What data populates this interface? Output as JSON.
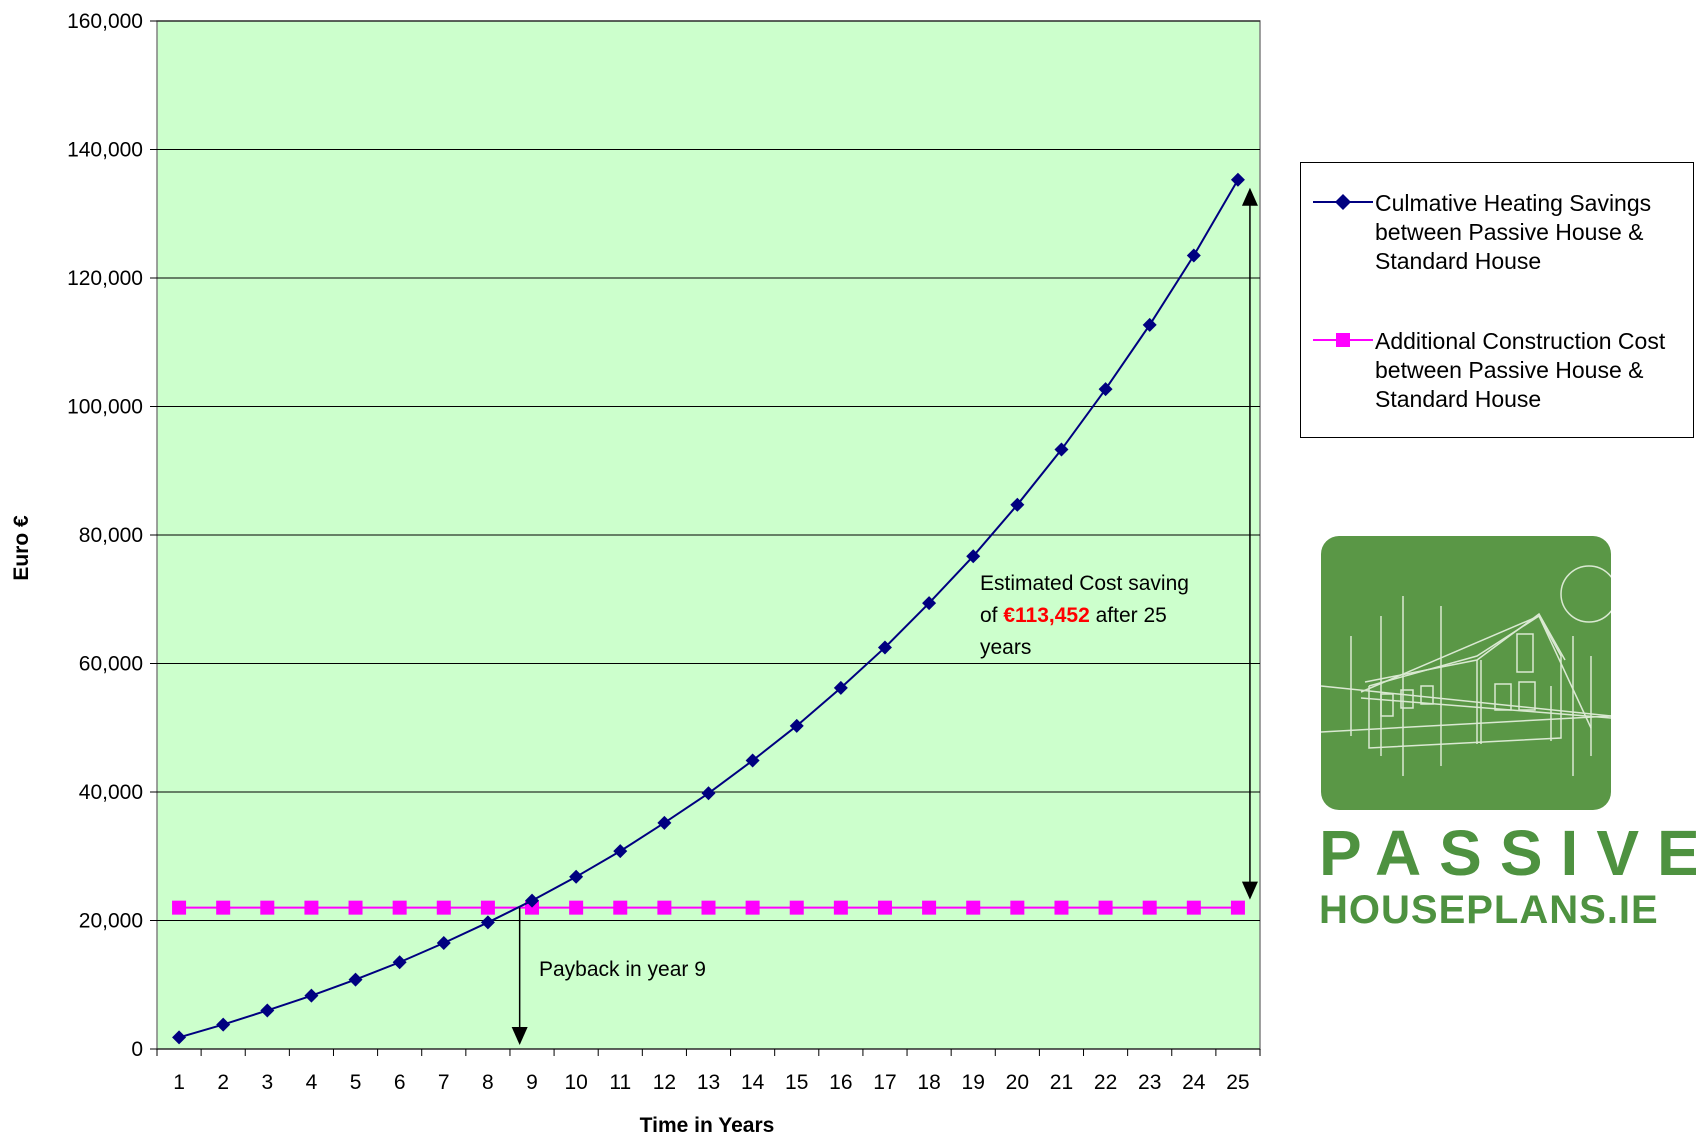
{
  "chart_data": {
    "type": "line",
    "title": "",
    "xlabel": "Time in Years",
    "ylabel": "Euro €",
    "categories": [
      1,
      2,
      3,
      4,
      5,
      6,
      7,
      8,
      9,
      10,
      11,
      12,
      13,
      14,
      15,
      16,
      17,
      18,
      19,
      20,
      21,
      22,
      23,
      24,
      25
    ],
    "ylim": [
      0,
      160000
    ],
    "yticks": [
      "0",
      "20,000",
      "40,000",
      "60,000",
      "80,000",
      "100,000",
      "120,000",
      "140,000",
      "160,000"
    ],
    "grid": "horizontal",
    "background": "#ccffcc",
    "series": [
      {
        "name": "Culmative Heating Savings between Passive House & Standard House",
        "color": "#000080",
        "marker": "diamond",
        "values": [
          1800,
          3800,
          6000,
          8300,
          10800,
          13500,
          16500,
          19700,
          23100,
          26800,
          30800,
          35200,
          39800,
          44900,
          50300,
          56200,
          62500,
          69400,
          76700,
          84700,
          93300,
          102700,
          112700,
          123500,
          135300
        ]
      },
      {
        "name": "Additional Construction Cost between Passive House & Standard House",
        "color": "#ff00ff",
        "marker": "square",
        "values": [
          22000,
          22000,
          22000,
          22000,
          22000,
          22000,
          22000,
          22000,
          22000,
          22000,
          22000,
          22000,
          22000,
          22000,
          22000,
          22000,
          22000,
          22000,
          22000,
          22000,
          22000,
          22000,
          22000,
          22000,
          22000
        ]
      }
    ],
    "annotations": {
      "saving_line1": "Estimated Cost saving",
      "saving_prefix": "of ",
      "saving_value": "€113,452",
      "saving_suffix": " after 25",
      "saving_line3": "years",
      "payback": "Payback in year 9"
    },
    "legend_position": "right"
  },
  "logo": {
    "word1": "PASSIVE",
    "word2": "HOUSEPLANS.IE",
    "tile_color": "#5a9746",
    "text_color": "#4e9240"
  }
}
